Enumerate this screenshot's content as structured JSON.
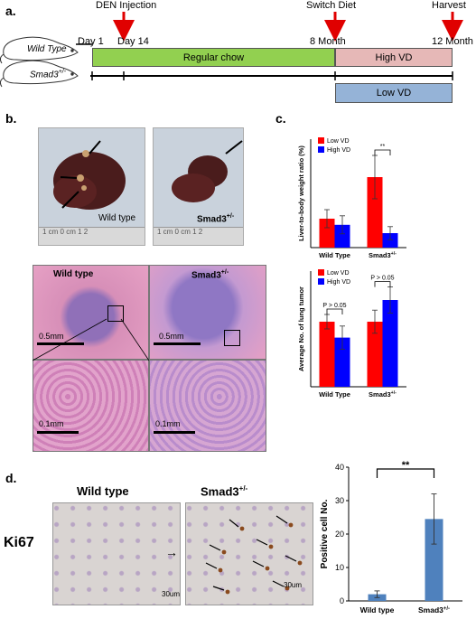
{
  "panel_a": {
    "letter": "a.",
    "events": {
      "den_injection": "DEN Injection",
      "switch_diet": "Switch Diet",
      "harvest": "Harvest"
    },
    "timepoints": [
      "Day 1",
      "Day 14",
      "8 Month",
      "12 Month"
    ],
    "mice": {
      "wild_type": "Wild Type",
      "smad3_base": "Smad3",
      "smad3_sup": "+/-"
    },
    "diets": {
      "regular_chow": "Regular chow",
      "high_vd": "High VD",
      "low_vd": "Low VD"
    },
    "colors": {
      "chow": "#92d050",
      "high_vd": "#e6b8b7",
      "low_vd": "#95b3d7",
      "arrow": "#e00000"
    }
  },
  "panel_b": {
    "letter": "b.",
    "liver_photos": {
      "wild_type": "Wild type",
      "smad3_base": "Smad3",
      "smad3_sup": "+/-",
      "ruler_text": "1 cm 0 cm 1 2"
    },
    "histology": {
      "wild_type": "Wild type",
      "smad3_base": "Smad3",
      "smad3_sup": "+/-",
      "scale_low": "0.5mm",
      "scale_high": "0.1mm"
    }
  },
  "panel_c": {
    "letter": "c.",
    "colors": {
      "low_vd": "#ff0000",
      "high_vd": "#0000ff"
    }
  },
  "panel_d": {
    "letter": "d.",
    "stain": "Ki67",
    "wild_type": "Wild type",
    "smad3_base": "Smad3",
    "smad3_sup": "+/-",
    "scale": "30um",
    "bar_color": "#4f81bd"
  },
  "chart_data": [
    {
      "type": "bar",
      "ylabel": "Liver-to-body weight ratio (%)",
      "categories": [
        "Wild Type",
        "Smad3+/-"
      ],
      "series": [
        {
          "name": "Low VD",
          "values": [
            8,
            19.5
          ],
          "errors": [
            2.5,
            6
          ]
        },
        {
          "name": "High VD",
          "values": [
            6.3,
            4
          ],
          "errors": [
            2.5,
            1.8
          ]
        }
      ],
      "ylim": [
        0,
        30
      ],
      "significance": [
        {
          "category": "Smad3+/-",
          "label": "**"
        }
      ],
      "legend": "top-left",
      "grid": false
    },
    {
      "type": "bar",
      "ylabel": "Average No. of lung tumor",
      "categories": [
        "Wild Type",
        "Smad3+/-"
      ],
      "series": [
        {
          "name": "Low VD",
          "values": [
            4.5,
            4.5
          ],
          "errors": [
            0.5,
            0.8
          ]
        },
        {
          "name": "High VD",
          "values": [
            3.4,
            6
          ],
          "errors": [
            0.8,
            0.9
          ]
        }
      ],
      "ylim": [
        0,
        8
      ],
      "significance": [
        {
          "category": "Wild Type",
          "label": "P > 0.05"
        },
        {
          "category": "Smad3+/-",
          "label": "P > 0.05"
        }
      ],
      "legend": "top-left",
      "grid": false
    },
    {
      "type": "bar",
      "ylabel": "Positive cell No.",
      "categories": [
        "Wild type",
        "Smad3+/-"
      ],
      "values": [
        2,
        24.5
      ],
      "errors": [
        1,
        7.5
      ],
      "ylim": [
        0,
        40
      ],
      "yticks": [
        0,
        10,
        20,
        30,
        40
      ],
      "significance": [
        {
          "between": [
            "Wild type",
            "Smad3+/-"
          ],
          "label": "**"
        }
      ],
      "grid": false
    }
  ]
}
